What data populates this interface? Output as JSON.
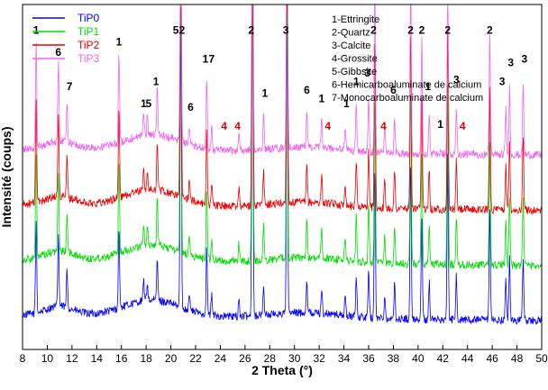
{
  "chart_data": {
    "type": "line",
    "title": "",
    "xlabel": "2 Theta (°)",
    "ylabel": "Intensité (coups)",
    "xlim": [
      8,
      50
    ],
    "xticks": [
      8,
      10,
      12,
      14,
      16,
      18,
      20,
      22,
      24,
      26,
      28,
      30,
      32,
      34,
      36,
      38,
      40,
      42,
      44,
      46,
      48,
      50
    ],
    "y_tick_labels": false,
    "grid": false,
    "legend_position": "top-left",
    "series": [
      {
        "name": "TiP0",
        "color": "#0000ff",
        "baseline": 0.9
      },
      {
        "name": "TiP1",
        "color": "#00dd00",
        "baseline": 0.74
      },
      {
        "name": "TiP2",
        "color": "#ee0000",
        "baseline": 0.58
      },
      {
        "name": "TiP3",
        "color": "#ee66ee",
        "baseline": 0.42
      }
    ],
    "peaks": [
      {
        "x": 9.1,
        "h": 0.55
      },
      {
        "x": 10.9,
        "h": 0.42
      },
      {
        "x": 11.6,
        "h": 0.22
      },
      {
        "x": 15.8,
        "h": 0.48
      },
      {
        "x": 17.8,
        "h": 0.12
      },
      {
        "x": 18.1,
        "h": 0.1
      },
      {
        "x": 18.9,
        "h": 0.25
      },
      {
        "x": 20.8,
        "h": 1.8
      },
      {
        "x": 21.5,
        "h": 0.1
      },
      {
        "x": 22.9,
        "h": 0.38
      },
      {
        "x": 23.3,
        "h": 0.12
      },
      {
        "x": 25.5,
        "h": 0.1
      },
      {
        "x": 26.6,
        "h": 2.4
      },
      {
        "x": 27.5,
        "h": 0.18
      },
      {
        "x": 29.4,
        "h": 1.9
      },
      {
        "x": 31.0,
        "h": 0.2
      },
      {
        "x": 32.2,
        "h": 0.15
      },
      {
        "x": 34.1,
        "h": 0.12
      },
      {
        "x": 35.0,
        "h": 0.25
      },
      {
        "x": 36.0,
        "h": 0.3
      },
      {
        "x": 36.5,
        "h": 0.9
      },
      {
        "x": 37.3,
        "h": 0.14
      },
      {
        "x": 38.1,
        "h": 0.2
      },
      {
        "x": 39.4,
        "h": 0.95
      },
      {
        "x": 40.3,
        "h": 0.6
      },
      {
        "x": 40.9,
        "h": 0.22
      },
      {
        "x": 42.4,
        "h": 0.95
      },
      {
        "x": 43.1,
        "h": 0.26
      },
      {
        "x": 45.8,
        "h": 0.65
      },
      {
        "x": 47.1,
        "h": 0.25
      },
      {
        "x": 47.4,
        "h": 0.36
      },
      {
        "x": 48.5,
        "h": 0.38
      }
    ],
    "annotations": [
      {
        "text": "1",
        "x": 9.1,
        "color": "#000"
      },
      {
        "text": "6",
        "x": 10.9,
        "color": "#000"
      },
      {
        "text": "7",
        "x": 11.8,
        "color": "#000"
      },
      {
        "text": "1",
        "x": 15.8,
        "color": "#000"
      },
      {
        "text": "1",
        "x": 17.8,
        "color": "#000"
      },
      {
        "text": "5",
        "x": 18.2,
        "color": "#000"
      },
      {
        "text": "1",
        "x": 18.8,
        "color": "#000"
      },
      {
        "text": "5",
        "x": 20.4,
        "color": "#000"
      },
      {
        "text": "2",
        "x": 20.9,
        "color": "#000"
      },
      {
        "text": "6",
        "x": 21.6,
        "color": "#000"
      },
      {
        "text": "1",
        "x": 22.8,
        "color": "#000"
      },
      {
        "text": "7",
        "x": 23.3,
        "color": "#000"
      },
      {
        "text": "4",
        "x": 24.3,
        "color": "#e00000"
      },
      {
        "text": "4",
        "x": 25.4,
        "color": "#e00000"
      },
      {
        "text": "2",
        "x": 26.5,
        "color": "#000"
      },
      {
        "text": "1",
        "x": 27.6,
        "color": "#000"
      },
      {
        "text": "3",
        "x": 29.3,
        "color": "#000"
      },
      {
        "text": "6",
        "x": 31.0,
        "color": "#000"
      },
      {
        "text": "1",
        "x": 32.2,
        "color": "#000"
      },
      {
        "text": "4",
        "x": 32.7,
        "color": "#e00000"
      },
      {
        "text": "1",
        "x": 34.2,
        "color": "#000"
      },
      {
        "text": "1",
        "x": 35.0,
        "color": "#000"
      },
      {
        "text": "3",
        "x": 35.9,
        "color": "#000"
      },
      {
        "text": "2",
        "x": 36.4,
        "color": "#000"
      },
      {
        "text": "4",
        "x": 37.2,
        "color": "#e00000"
      },
      {
        "text": "6",
        "x": 38.0,
        "color": "#000"
      },
      {
        "text": "2",
        "x": 39.4,
        "color": "#000"
      },
      {
        "text": "2",
        "x": 40.3,
        "color": "#000"
      },
      {
        "text": "1",
        "x": 40.8,
        "color": "#000"
      },
      {
        "text": "1",
        "x": 41.8,
        "color": "#000"
      },
      {
        "text": "2",
        "x": 42.4,
        "color": "#000"
      },
      {
        "text": "3",
        "x": 43.1,
        "color": "#000"
      },
      {
        "text": "4",
        "x": 43.6,
        "color": "#e00000"
      },
      {
        "text": "2",
        "x": 45.8,
        "color": "#000"
      },
      {
        "text": "3",
        "x": 46.8,
        "color": "#000"
      },
      {
        "text": "3",
        "x": 47.5,
        "color": "#000"
      },
      {
        "text": "3",
        "x": 48.6,
        "color": "#000"
      }
    ],
    "phase_key": [
      "1-Ettringite",
      "2-Quartz",
      "3-Calcite",
      "4-Grossite",
      "5-Gibbsite",
      "6-Hemicarboaluminate de calcium",
      "7-Monocarboaluminate de calcium"
    ]
  }
}
